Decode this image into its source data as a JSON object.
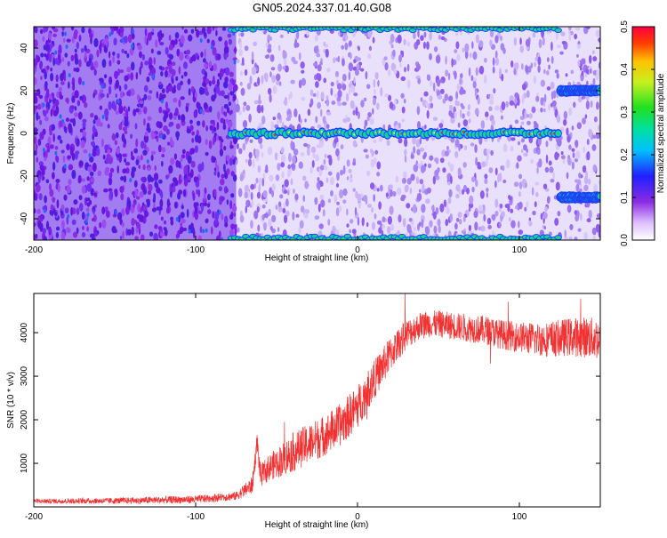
{
  "title": "GN05.2024.337.01.40.G08",
  "colors": {
    "snr_line": "#f03232",
    "spec_bg_low": "#7f2fe0",
    "spec_bg_high": "#b89af4",
    "line_green": "#22d46a",
    "line_yellow": "#e8f040",
    "line_red": "#f03030"
  },
  "chart_data": [
    {
      "type": "heatmap",
      "name": "spectrogram",
      "xlabel": "Height of straight line (km)",
      "ylabel": "Frequency (Hz)",
      "xlim": [
        -200,
        150
      ],
      "ylim": [
        -50,
        50
      ],
      "x_ticks": [
        -200,
        -100,
        0,
        100
      ],
      "y_ticks": [
        -40,
        -20,
        0,
        20,
        40
      ],
      "colorbar": {
        "label": "Normalized spectral amplitude",
        "range": [
          0,
          0.5
        ],
        "ticks": [
          0,
          0.1,
          0.2,
          0.3,
          0.4,
          0.5
        ],
        "colormap": "rainbow"
      },
      "features": [
        {
          "kind": "ridge",
          "x_range": [
            -78,
            124
          ],
          "freq": 0
        },
        {
          "kind": "ridge",
          "x_range": [
            125,
            150
          ],
          "freq": 20
        },
        {
          "kind": "ridge",
          "x_range": [
            125,
            150
          ],
          "freq": -30
        },
        {
          "kind": "ridge",
          "x_range": [
            -78,
            124
          ],
          "freq": 49
        },
        {
          "kind": "ridge",
          "x_range": [
            -78,
            124
          ],
          "freq": -49
        },
        {
          "kind": "noise_density_change",
          "x": -75
        }
      ]
    },
    {
      "type": "line",
      "name": "snr",
      "xlabel": "Height of straight line (km)",
      "ylabel": "SNR (10 * v/v)",
      "xlim": [
        -200,
        150
      ],
      "ylim": [
        0,
        4900
      ],
      "x_ticks": [
        -200,
        -100,
        0,
        100
      ],
      "y_ticks": [
        1000,
        2000,
        3000,
        4000
      ],
      "trend": {
        "x": [
          -200,
          -150,
          -100,
          -75,
          -65,
          -62,
          -60,
          -55,
          -50,
          -40,
          -30,
          -20,
          -10,
          0,
          10,
          20,
          30,
          40,
          50,
          60,
          70,
          80,
          90,
          100,
          110,
          120,
          130,
          140,
          150
        ],
        "y": [
          130,
          140,
          170,
          250,
          500,
          1500,
          700,
          900,
          1000,
          1250,
          1450,
          1650,
          1900,
          2300,
          2900,
          3500,
          3950,
          4200,
          4200,
          4150,
          4100,
          4050,
          3950,
          3900,
          3850,
          3850,
          3900,
          3900,
          3850
        ]
      },
      "noise_amplitude": {
        "x": [
          -200,
          -75,
          -40,
          0,
          40,
          100,
          150
        ],
        "y": [
          50,
          100,
          450,
          500,
          300,
          350,
          500
        ]
      }
    }
  ]
}
